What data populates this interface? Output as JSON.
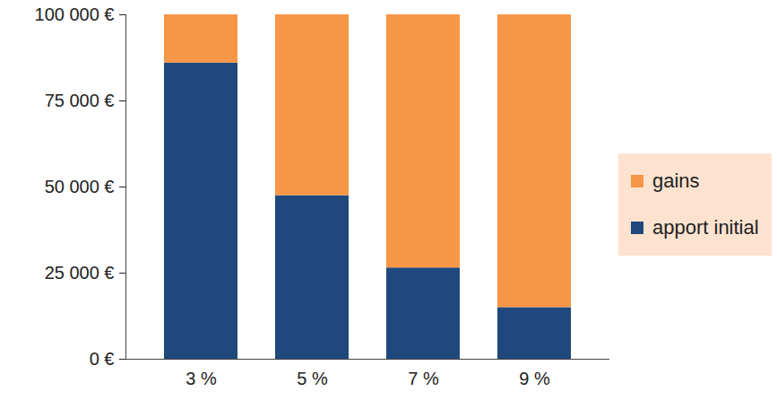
{
  "chart_data": {
    "type": "bar",
    "stacked": true,
    "categories": [
      "3 %",
      "5 %",
      "7 %",
      "9 %"
    ],
    "series": [
      {
        "name": "apport initial",
        "color": "#1f497d",
        "values": [
          86000,
          47500,
          26500,
          15000
        ]
      },
      {
        "name": "gains",
        "color": "#f79646",
        "values": [
          14000,
          52500,
          73500,
          85000
        ]
      }
    ],
    "ylim": [
      0,
      100000
    ],
    "yticks": [
      {
        "value": 0,
        "label": "0 €"
      },
      {
        "value": 25000,
        "label": "25 000 €"
      },
      {
        "value": 50000,
        "label": "50 000 €"
      },
      {
        "value": 75000,
        "label": "75 000 €"
      },
      {
        "value": 100000,
        "label": "100 000 €"
      }
    ],
    "grid": false,
    "legend": "right"
  }
}
